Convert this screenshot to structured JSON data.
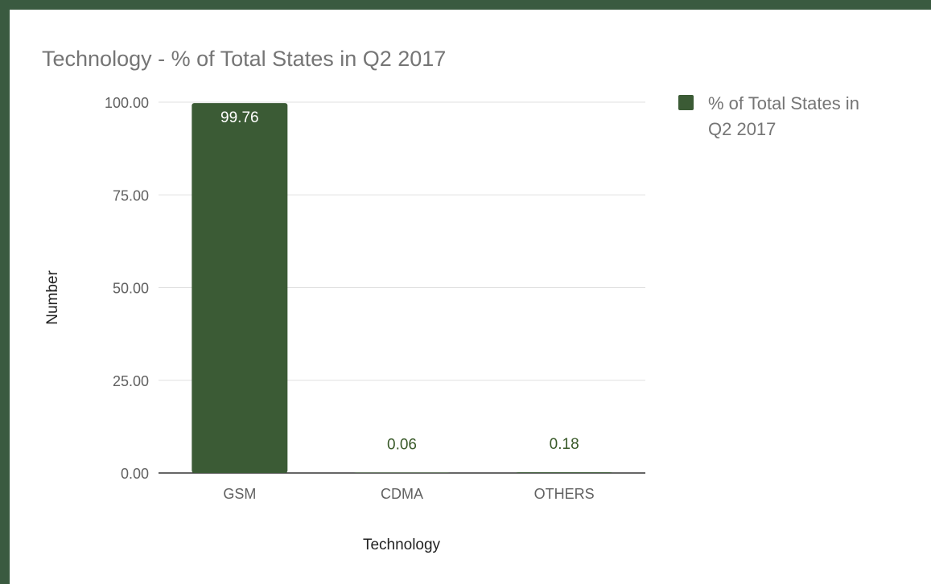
{
  "chart_data": {
    "type": "bar",
    "title": "Technology - % of Total States in Q2 2017",
    "xlabel": "Technology",
    "ylabel": "Number",
    "categories": [
      "GSM",
      "CDMA",
      "OTHERS"
    ],
    "series": [
      {
        "name": "% of Total States in Q2 2017",
        "values": [
          99.76,
          0.06,
          0.18
        ],
        "labels": [
          "99.76",
          "0.06",
          "0.18"
        ]
      }
    ],
    "ylim": [
      0,
      100
    ],
    "yticks": [
      0,
      25,
      50,
      75,
      100
    ],
    "ytick_labels": [
      "0.00",
      "25.00",
      "50.00",
      "75.00",
      "100.00"
    ],
    "grid": true,
    "legend_position": "right",
    "legend_lines": [
      "% of Total States in",
      "Q2 2017"
    ],
    "colors": {
      "bar": "#3b5b35",
      "frame": "#3a5a40",
      "gridline": "#e0e0e0",
      "axis": "#333333",
      "outside_label": "#3a5a2a"
    }
  }
}
